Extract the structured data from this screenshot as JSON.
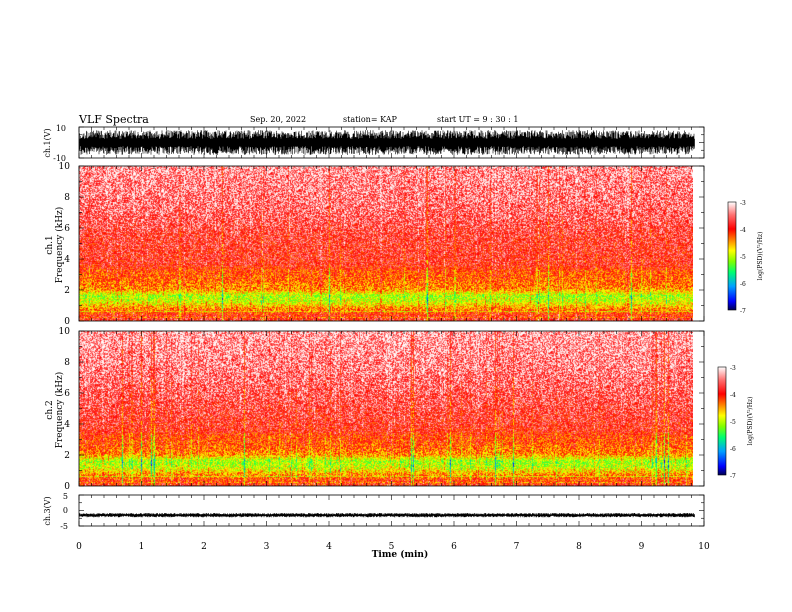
{
  "header": {
    "title": "VLF Spectra",
    "date": "Sep. 20, 2022",
    "station": "station= KAP",
    "start": "start  UT =   9 : 30 : 1"
  },
  "chart_data": [
    {
      "type": "line",
      "id": "ch1-waveform",
      "ylabel": "ch.1(V)",
      "ylim": [
        -10,
        10
      ],
      "ytick_labels": [
        "10",
        "-10"
      ],
      "xlim": [
        0,
        10
      ],
      "data_end_min": 9.85,
      "amplitude_range_v": [
        -8,
        8
      ],
      "line_color": "#000000"
    },
    {
      "type": "heatmap",
      "id": "ch1-spectrogram",
      "ylabel": "ch.1\nFrequency  (kHz)",
      "ylim": [
        0,
        10
      ],
      "ytick_labels": [
        "0",
        "2",
        "4",
        "6",
        "8",
        "10"
      ],
      "xlim": [
        0,
        10
      ],
      "data_end_min": 9.85,
      "freq_profile_khz_to_log_psd": [
        [
          0.2,
          -3.8
        ],
        [
          0.5,
          -4.1
        ],
        [
          0.8,
          -4.4
        ],
        [
          1.2,
          -4.9
        ],
        [
          1.6,
          -5.1
        ],
        [
          2.0,
          -4.4
        ],
        [
          2.6,
          -4.2
        ],
        [
          3.2,
          -4.1
        ],
        [
          3.6,
          -3.8
        ],
        [
          4.5,
          -3.75
        ],
        [
          5.5,
          -3.7
        ],
        [
          6.5,
          -3.55
        ],
        [
          7.5,
          -3.45
        ],
        [
          8.5,
          -3.4
        ],
        [
          9.5,
          -3.35
        ],
        [
          10.0,
          -3.3
        ]
      ],
      "colorbar": {
        "label": "log(PSD)(V²/Hz)",
        "range": [
          -7,
          -3
        ],
        "tick_labels": [
          "-3",
          "-4",
          "-5",
          "-6",
          "-7"
        ],
        "colormap": [
          "#000050",
          "#0000ff",
          "#00a0ff",
          "#00ff70",
          "#80ff00",
          "#ffff00",
          "#ff8000",
          "#ff0000",
          "#ff7070",
          "#ffffff"
        ]
      }
    },
    {
      "type": "heatmap",
      "id": "ch2-spectrogram",
      "ylabel": "ch.2\nFrequency  (kHz)",
      "ylim": [
        0,
        10
      ],
      "ytick_labels": [
        "0",
        "2",
        "4",
        "6",
        "8",
        "10"
      ],
      "xlim": [
        0,
        10
      ],
      "data_end_min": 9.85,
      "freq_profile_khz_to_log_psd": [
        [
          0.2,
          -3.9
        ],
        [
          0.5,
          -4.2
        ],
        [
          0.8,
          -4.5
        ],
        [
          1.2,
          -5.0
        ],
        [
          1.6,
          -5.1
        ],
        [
          2.0,
          -4.4
        ],
        [
          2.6,
          -4.15
        ],
        [
          3.2,
          -4.05
        ],
        [
          3.6,
          -3.8
        ],
        [
          4.5,
          -3.7
        ],
        [
          5.5,
          -3.6
        ],
        [
          6.5,
          -3.5
        ],
        [
          7.5,
          -3.4
        ],
        [
          8.5,
          -3.35
        ],
        [
          9.5,
          -3.3
        ],
        [
          10.0,
          -3.25
        ]
      ],
      "colorbar": {
        "label": "log(PSD)(V²/Hz)",
        "range": [
          -7,
          -3
        ],
        "tick_labels": [
          "-3",
          "-4",
          "-5",
          "-6",
          "-7"
        ],
        "colormap": [
          "#000050",
          "#0000ff",
          "#00a0ff",
          "#00ff70",
          "#80ff00",
          "#ffff00",
          "#ff8000",
          "#ff0000",
          "#ff7070",
          "#ffffff"
        ]
      }
    },
    {
      "type": "line",
      "id": "ch3-waveform",
      "ylabel": "ch.3(V)",
      "ylim": [
        -5,
        5
      ],
      "ytick_labels": [
        "5",
        "0",
        "-5"
      ],
      "xlim": [
        0,
        10
      ],
      "data_end_min": 9.85,
      "amplitude_range_v": [
        -2.2,
        -0.8
      ],
      "line_color": "#000000"
    }
  ],
  "xaxis": {
    "label": "Time  (min)",
    "tick_labels": [
      "0",
      "1",
      "2",
      "3",
      "4",
      "5",
      "6",
      "7",
      "8",
      "9",
      "10"
    ],
    "range": [
      0,
      10
    ]
  }
}
